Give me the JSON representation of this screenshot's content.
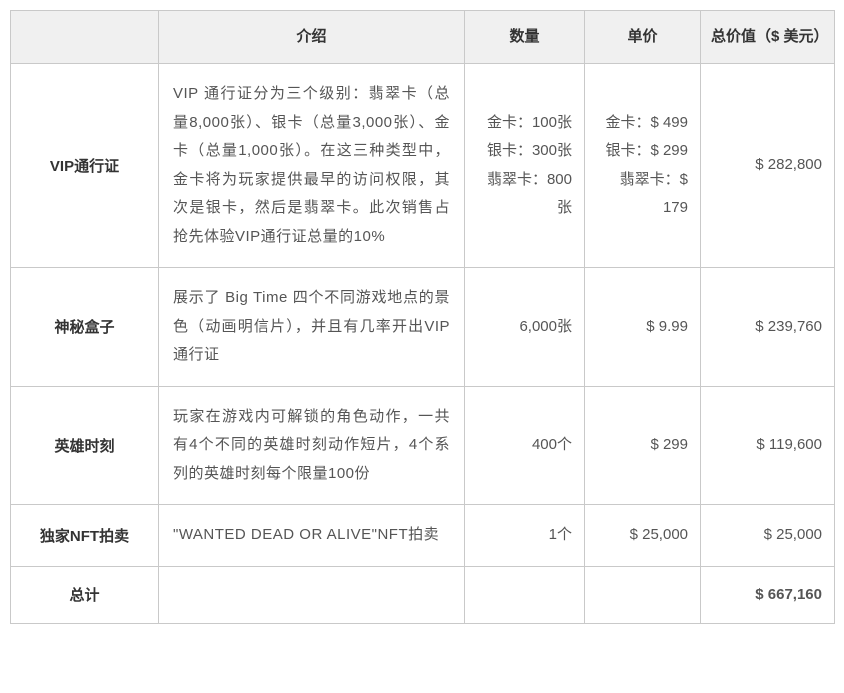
{
  "table": {
    "headers": {
      "col0": "",
      "col1": "介绍",
      "col2": "数量",
      "col3": "单价",
      "col4": "总价值（$ 美元）"
    },
    "rows": [
      {
        "label": "VIP通行证",
        "desc": "VIP 通行证分为三个级别：翡翠卡（总量8,000张）、银卡（总量3,000张）、金卡（总量1,000张）。在这三种类型中，金卡将为玩家提供最早的访问权限，其次是银卡，然后是翡翠卡。此次销售占抢先体验VIP通行证总量的10%",
        "qty": "金卡：100张\n银卡：300张\n翡翠卡：800张",
        "unit": "金卡：$ 499\n银卡：$ 299\n翡翠卡：$ 179",
        "total": "$ 282,800"
      },
      {
        "label": "神秘盒子",
        "desc": "展示了 Big Time 四个不同游戏地点的景色（动画明信片），并且有几率开出VIP通行证",
        "qty": "6,000张",
        "unit": "$ 9.99",
        "total": "$ 239,760"
      },
      {
        "label": "英雄时刻",
        "desc": "玩家在游戏内可解锁的角色动作，一共有4个不同的英雄时刻动作短片，4个系列的英雄时刻每个限量100份",
        "qty": "400个",
        "unit": "$ 299",
        "total": "$ 119,600"
      },
      {
        "label": "独家NFT拍卖",
        "desc": "\"WANTED DEAD OR ALIVE\"NFT拍卖",
        "qty": "1个",
        "unit": "$ 25,000",
        "total": "$ 25,000"
      }
    ],
    "totalRow": {
      "label": "总计",
      "desc": "",
      "qty": "",
      "unit": "",
      "total": "$ 667,160"
    }
  },
  "style": {
    "headerBg": "#f0f0f0",
    "borderColor": "#c9c9c9",
    "textColor": "#333333",
    "descColor": "#555555",
    "fontSize": 15
  }
}
